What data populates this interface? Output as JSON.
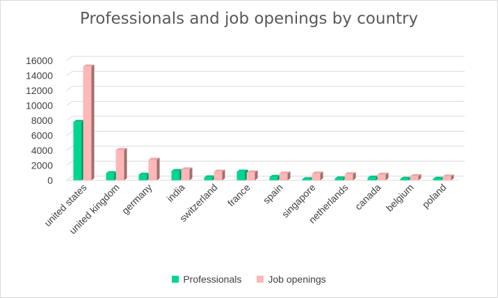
{
  "chart_data": {
    "type": "bar",
    "title": "Professionals and job openings by country",
    "xlabel": "",
    "ylabel": "",
    "categories": [
      "united states",
      "united kingdom",
      "germany",
      "india",
      "switzerland",
      "france",
      "spain",
      "singapore",
      "netherlands",
      "canada",
      "belgium",
      "poland"
    ],
    "series": [
      {
        "name": "Professionals",
        "color": "#00d68f",
        "values": [
          7800,
          950,
          750,
          1250,
          400,
          1150,
          450,
          150,
          250,
          350,
          200,
          200
        ]
      },
      {
        "name": "Job openings",
        "color": "#ffb7b7",
        "values": [
          15200,
          4050,
          2750,
          1450,
          1150,
          1050,
          900,
          900,
          800,
          750,
          550,
          500
        ]
      }
    ],
    "ylim": [
      0,
      16000
    ],
    "yticks": [
      0,
      2000,
      4000,
      6000,
      8000,
      10000,
      12000,
      14000,
      16000
    ],
    "grid": true,
    "legend_position": "bottom"
  }
}
